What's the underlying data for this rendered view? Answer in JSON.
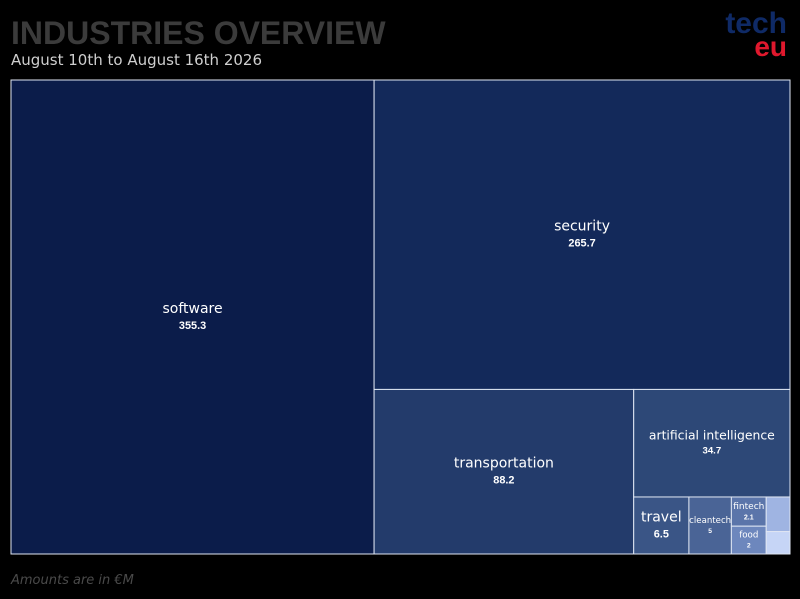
{
  "chart_data": {
    "type": "treemap",
    "title": "INDUSTRIES OVERVIEW",
    "subtitle": "August 10th to August 16th 2026",
    "note": "Amounts are in €M",
    "logo": {
      "top": "tech",
      "bottom": "eu"
    },
    "categories": [
      "software",
      "security",
      "transportation",
      "artificial intelligence",
      "travel",
      "cleantech",
      "fintech",
      "food",
      null,
      null
    ],
    "values": [
      355.3,
      265.7,
      88.2,
      34.7,
      6.5,
      5,
      2.1,
      2,
      1.7,
      1.1
    ],
    "colors": [
      "#0b1c4a",
      "#13295a",
      "#233b6b",
      "#2d4877",
      "#3a5586",
      "#4a6496",
      "#5b75aa",
      "#6d87bd",
      "#9fb4e2",
      "#c6d5f6"
    ]
  }
}
